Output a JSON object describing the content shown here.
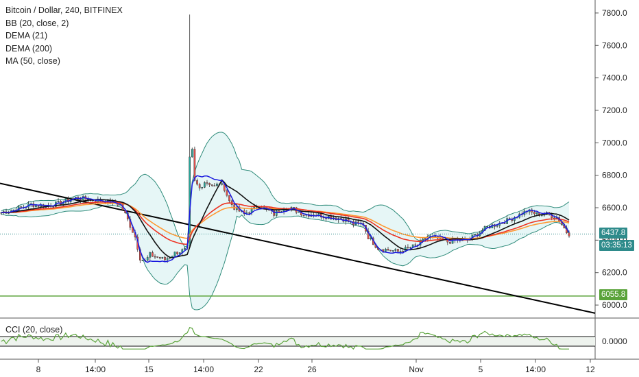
{
  "title": "Bitcoin / Dollar, 240, BITFINEX",
  "indicators": [
    "BB (20, close, 2)",
    "DEMA (21)",
    "DEMA (200)",
    "MA (50, close)"
  ],
  "cci_label": "CCI (20, close)",
  "last_price": "6437.8",
  "countdown": "03:35:13",
  "support_level": "6055.8",
  "colors": {
    "bb_line": "#2e8b7a",
    "bb_fill": "#e6f6f6",
    "dema21": "#1a1adf",
    "dema200": "#ee3322",
    "ma50": "#111111",
    "ma_orange": "#ff9933",
    "support": "#5aa33a",
    "trendline": "#000000",
    "candle_up": "#26a69a",
    "candle_down": "#ef5350",
    "last_price_tag": "#2e8b8b",
    "countdown_tag": "#2e8b8b",
    "support_tag": "#5aa33a"
  },
  "chart_data": {
    "type": "candlestick",
    "instrument": "Bitcoin / Dollar, 240, BITFINEX",
    "y_axis": {
      "ylim": [
        5920,
        7880
      ],
      "ticks": [
        "7800.0",
        "7600.0",
        "7400.0",
        "7200.0",
        "7000.0",
        "6800.0",
        "6600.0",
        "6400.0",
        "6200.0",
        "6000.0"
      ]
    },
    "x_axis": {
      "ticks": [
        "8",
        "14:00",
        "15",
        "14:00",
        "22",
        "26",
        "Nov",
        "5",
        "14:00",
        "12"
      ]
    },
    "price_path": [
      [
        0,
        6570
      ],
      [
        6,
        6590
      ],
      [
        12,
        6620
      ],
      [
        18,
        6610
      ],
      [
        24,
        6630
      ],
      [
        30,
        6660
      ],
      [
        36,
        6650
      ],
      [
        42,
        6640
      ],
      [
        48,
        6620
      ],
      [
        50,
        6560
      ],
      [
        54,
        6420
      ],
      [
        56,
        6290
      ],
      [
        58,
        6270
      ],
      [
        60,
        6310
      ],
      [
        62,
        6300
      ],
      [
        64,
        6290
      ],
      [
        66,
        6280
      ],
      [
        68,
        6300
      ],
      [
        70,
        6320
      ],
      [
        72,
        6330
      ],
      [
        74,
        6340
      ],
      [
        75,
        6350
      ],
      [
        76,
        6900
      ],
      [
        77,
        6950
      ],
      [
        78,
        6760
      ],
      [
        80,
        6720
      ],
      [
        82,
        6760
      ],
      [
        84,
        6750
      ],
      [
        86,
        6730
      ],
      [
        88,
        6750
      ],
      [
        90,
        6720
      ],
      [
        92,
        6640
      ],
      [
        94,
        6600
      ],
      [
        96,
        6580
      ],
      [
        98,
        6560
      ],
      [
        100,
        6580
      ],
      [
        102,
        6600
      ],
      [
        104,
        6620
      ],
      [
        106,
        6600
      ],
      [
        108,
        6580
      ],
      [
        110,
        6560
      ],
      [
        112,
        6580
      ],
      [
        114,
        6600
      ],
      [
        118,
        6590
      ],
      [
        122,
        6560
      ],
      [
        126,
        6560
      ],
      [
        130,
        6550
      ],
      [
        134,
        6540
      ],
      [
        138,
        6530
      ],
      [
        142,
        6500
      ],
      [
        146,
        6500
      ],
      [
        148,
        6420
      ],
      [
        152,
        6350
      ],
      [
        156,
        6340
      ],
      [
        160,
        6330
      ],
      [
        164,
        6350
      ],
      [
        168,
        6370
      ],
      [
        172,
        6420
      ],
      [
        176,
        6410
      ],
      [
        180,
        6390
      ],
      [
        184,
        6400
      ],
      [
        188,
        6400
      ],
      [
        192,
        6440
      ],
      [
        196,
        6480
      ],
      [
        200,
        6500
      ],
      [
        204,
        6520
      ],
      [
        208,
        6550
      ],
      [
        212,
        6580
      ],
      [
        216,
        6560
      ],
      [
        220,
        6560
      ],
      [
        224,
        6540
      ],
      [
        226,
        6500
      ],
      [
        228,
        6450
      ],
      [
        230,
        6430
      ]
    ],
    "cci_axis": {
      "ticks": [
        "0.0000"
      ],
      "bands": [
        100,
        -100
      ]
    },
    "series": [
      {
        "name": "BB (20, close, 2)"
      },
      {
        "name": "DEMA (21)"
      },
      {
        "name": "DEMA (200)"
      },
      {
        "name": "MA (50, close)"
      }
    ],
    "horizontal_lines": [
      6055.8
    ],
    "trendline": {
      "start": 6750,
      "end": 5950
    },
    "grid": true
  }
}
